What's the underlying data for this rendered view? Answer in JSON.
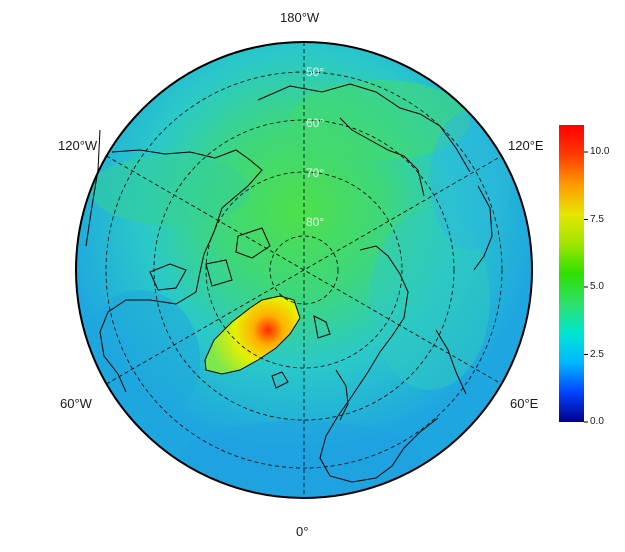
{
  "longitude_labels": {
    "top": "180°W",
    "upper_left": "120°W",
    "upper_right": "120°E",
    "lower_left": "60°W",
    "lower_right": "60°E",
    "bottom": "0°"
  },
  "latitude_labels": [
    "50°",
    "60°",
    "70°",
    "80°"
  ],
  "colorbar": {
    "ticks": [
      "0.0",
      "2.5",
      "5.0",
      "7.5",
      "10.0"
    ],
    "min": 0,
    "max": 11,
    "colors": [
      "#00008c",
      "#0044ff",
      "#00b8ff",
      "#00e6d2",
      "#2ee06a",
      "#2ee000",
      "#a0e600",
      "#e6e600",
      "#ff9a00",
      "#ff3a00",
      "#ff0000"
    ]
  },
  "colors": {
    "ocean_low": "#1e9fe0",
    "ocean_mid": "#28c4e6",
    "land_mid": "#46d88a",
    "high": "#3ee04a",
    "greenland_peak": "#ff3a00",
    "coastline": "#000000"
  }
}
